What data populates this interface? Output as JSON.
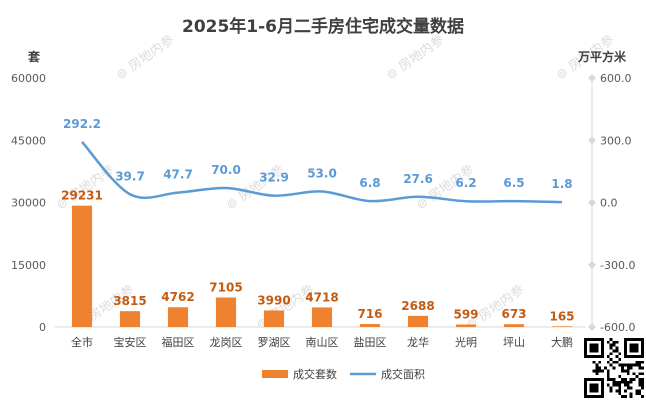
{
  "chart_data": {
    "type": "bar+line",
    "title": "2025年1-6月二手房住宅成交量数据",
    "categories": [
      "全市",
      "宝安区",
      "福田区",
      "龙岗区",
      "罗湖区",
      "南山区",
      "盐田区",
      "龙华",
      "光明",
      "坪山",
      "大鹏"
    ],
    "series": [
      {
        "name": "成交套数",
        "type": "bar",
        "axis": "left",
        "values": [
          29231,
          3815,
          4762,
          7105,
          3990,
          4718,
          716,
          2688,
          599,
          673,
          165
        ],
        "labels": [
          "29231",
          "3815",
          "4762",
          "7105",
          "3990",
          "4718",
          "716",
          "2688",
          "599",
          "673",
          "165"
        ]
      },
      {
        "name": "成交面积",
        "type": "line",
        "axis": "right",
        "values": [
          292.2,
          39.7,
          47.7,
          70.0,
          32.9,
          53.0,
          6.8,
          27.6,
          6.2,
          6.5,
          1.8
        ],
        "labels": [
          "292.2",
          "39.7",
          "47.7",
          "70.0",
          "32.9",
          "53.0",
          "6.8",
          "27.6",
          "6.2",
          "6.5",
          "1.8"
        ]
      }
    ],
    "y_left": {
      "label": "套",
      "ylim": [
        0,
        60000
      ],
      "ticks": [
        "0",
        "15000",
        "30000",
        "45000",
        "60000"
      ]
    },
    "y_right": {
      "label": "万平方米",
      "ylim": [
        -600,
        600
      ],
      "ticks": [
        "-600.0",
        "-300.0",
        "0.0",
        "300.0",
        "600.0"
      ]
    },
    "legend": {
      "placement": "bottom"
    },
    "grid": false
  },
  "watermark": "房地内参",
  "colors": {
    "bar": "#ee822f",
    "bar_label": "#c55a11",
    "line": "#5b9bd5",
    "line_label": "#5b9bd5",
    "title": "#404040",
    "axis_text": "#595959"
  }
}
